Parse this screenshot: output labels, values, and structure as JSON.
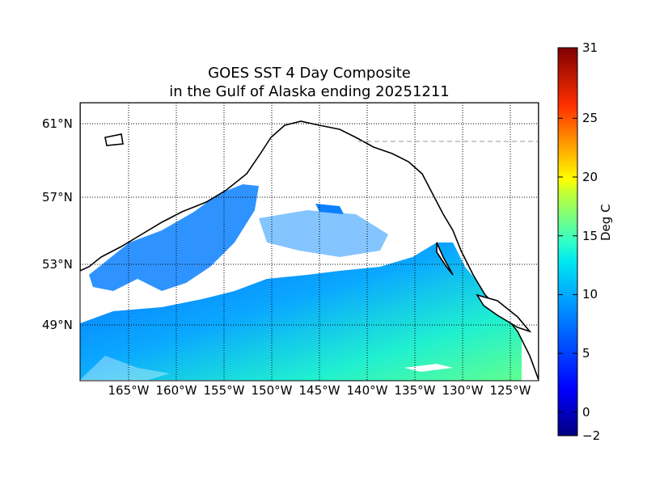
{
  "title": {
    "line1": "GOES SST 4 Day Composite",
    "line2": "in the Gulf of Alaska ending 20251211"
  },
  "map": {
    "lon_labels": [
      "165°W",
      "160°W",
      "155°W",
      "150°W",
      "145°W",
      "140°W",
      "135°W",
      "130°W",
      "125°W"
    ],
    "lon_values": [
      -165,
      -160,
      -155,
      -150,
      -145,
      -140,
      -135,
      -130,
      -125
    ],
    "lat_labels": [
      "61°N",
      "57°N",
      "53°N",
      "49°N"
    ],
    "lat_values": [
      61,
      57,
      53,
      49
    ],
    "lon_range": [
      -170,
      -122
    ],
    "lat_range": [
      46,
      62.2
    ]
  },
  "colorbar": {
    "label": "Deg C",
    "min": -2,
    "max": 31,
    "ticks": [
      -2,
      0,
      5,
      10,
      15,
      20,
      25,
      31
    ],
    "tick_labels": [
      "−2",
      "0",
      "5",
      "10",
      "15",
      "20",
      "25",
      "31"
    ],
    "colormap": "jet"
  }
}
